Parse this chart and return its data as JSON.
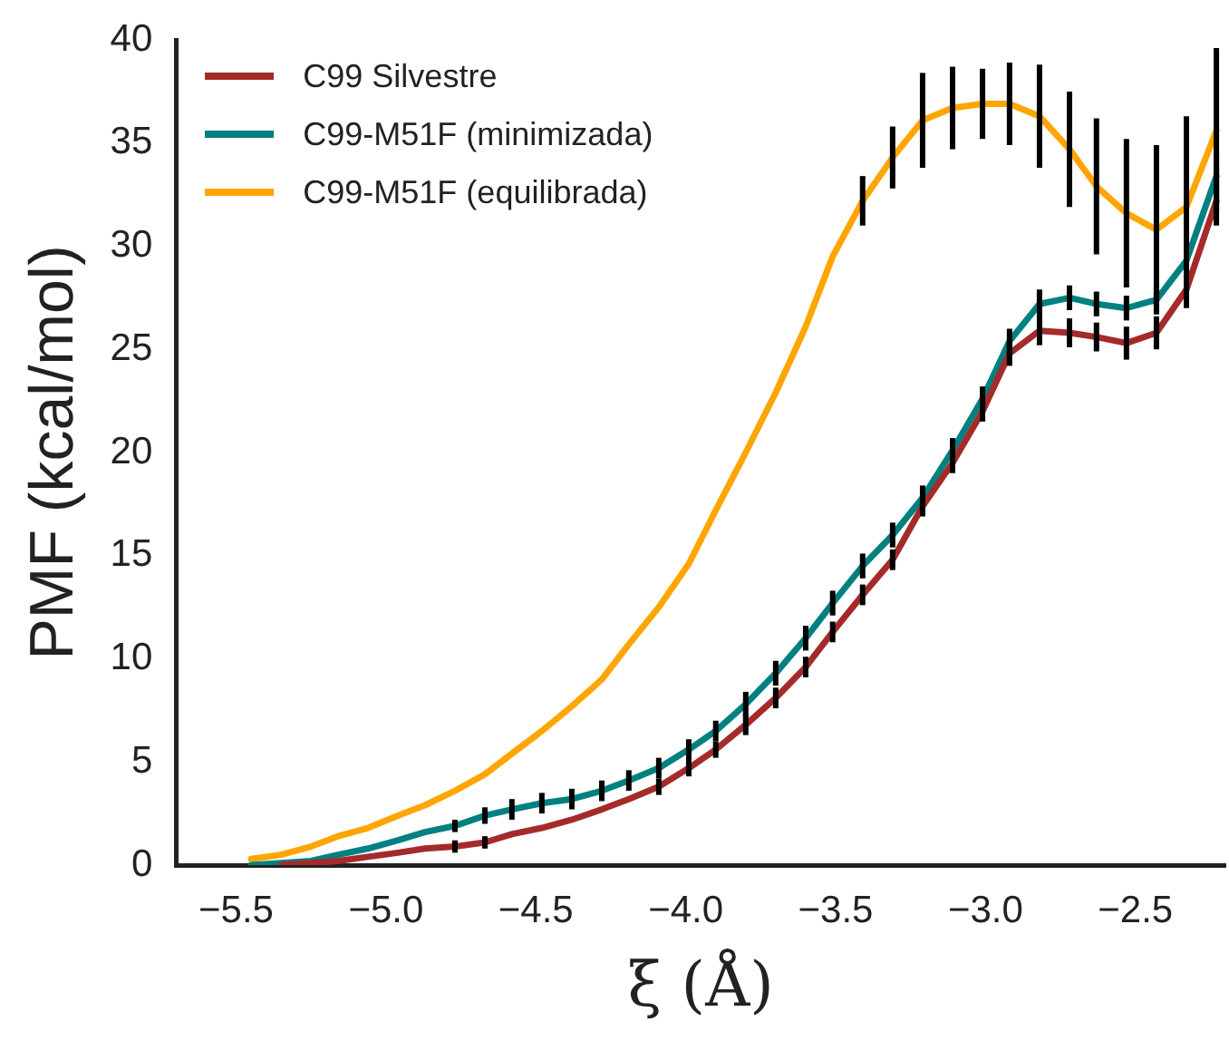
{
  "chart_data": {
    "type": "line",
    "xlabel": "ξ (Å)",
    "ylabel": "PMF (kcal/mol)",
    "xlim": [
      -5.7,
      -2.2
    ],
    "ylim": [
      0,
      40
    ],
    "xticks": [
      {
        "value": -5.5,
        "label": "−5.5"
      },
      {
        "value": -5.0,
        "label": "−5.0"
      },
      {
        "value": -4.5,
        "label": "−4.5"
      },
      {
        "value": -4.0,
        "label": "−4.0"
      },
      {
        "value": -3.5,
        "label": "−3.5"
      },
      {
        "value": -3.0,
        "label": "−3.0"
      },
      {
        "value": -2.5,
        "label": "−2.5"
      }
    ],
    "yticks": [
      0,
      5,
      10,
      15,
      20,
      25,
      30,
      35,
      40
    ],
    "grid": false,
    "legend": "top left",
    "marker": "none",
    "line_style": "solid",
    "x": [
      -5.45,
      -5.35,
      -5.25,
      -5.16,
      -5.06,
      -4.96,
      -4.87,
      -4.77,
      -4.67,
      -4.58,
      -4.48,
      -4.38,
      -4.28,
      -4.19,
      -4.09,
      -3.99,
      -3.9,
      -3.8,
      -3.7,
      -3.6,
      -3.51,
      -3.41,
      -3.31,
      -3.21,
      -3.11,
      -3.01,
      -2.92,
      -2.82,
      -2.72,
      -2.63,
      -2.53,
      -2.43,
      -2.33,
      -2.23
    ],
    "series": [
      {
        "name": "C99 Silvestre",
        "color": "#a52a2a",
        "values": [
          null,
          0,
          0.1,
          0.2,
          0.4,
          0.6,
          0.8,
          0.9,
          1.1,
          1.5,
          1.8,
          2.2,
          2.7,
          3.2,
          3.8,
          4.7,
          5.6,
          6.8,
          8.1,
          9.6,
          11.3,
          13.1,
          14.8,
          17.4,
          19.5,
          22.0,
          24.8,
          25.9,
          25.8,
          25.6,
          25.3,
          25.8,
          27.9,
          32.2
        ],
        "errors": [
          null,
          null,
          null,
          null,
          null,
          null,
          null,
          0.3,
          0.3,
          null,
          null,
          null,
          null,
          null,
          0.4,
          0.4,
          0.4,
          0.5,
          0.5,
          0.5,
          0.5,
          0.5,
          0.5,
          0.5,
          0.5,
          0.5,
          0.6,
          0.7,
          0.7,
          0.7,
          0.8,
          0.8,
          0.9,
          1.2
        ]
      },
      {
        "name": "C99-M51F (minimizada)",
        "color": "#008080",
        "values": [
          0,
          0.1,
          0.2,
          0.5,
          0.8,
          1.2,
          1.6,
          1.9,
          2.4,
          2.7,
          3.0,
          3.2,
          3.6,
          4.1,
          4.7,
          5.6,
          6.5,
          7.8,
          9.3,
          11.0,
          12.7,
          14.5,
          16.0,
          17.8,
          20.1,
          22.6,
          25.4,
          27.2,
          27.5,
          27.2,
          27.0,
          27.4,
          29.3,
          33.4
        ],
        "errors": [
          null,
          null,
          null,
          null,
          null,
          null,
          null,
          0.3,
          0.4,
          0.5,
          0.5,
          0.5,
          0.5,
          0.5,
          0.5,
          0.5,
          0.5,
          0.6,
          0.6,
          0.6,
          0.6,
          0.6,
          0.6,
          0.6,
          0.6,
          0.6,
          0.6,
          0.7,
          0.6,
          0.6,
          0.6,
          0.7,
          0.9,
          1.2
        ]
      },
      {
        "name": "C99-M51F (equilibrada)",
        "color": "#ffa500",
        "values": [
          0.3,
          0.5,
          0.9,
          1.4,
          1.8,
          2.4,
          2.9,
          3.6,
          4.4,
          5.4,
          6.5,
          7.7,
          9.0,
          10.7,
          12.5,
          14.6,
          17.2,
          20.0,
          22.9,
          26.1,
          29.5,
          32.2,
          34.3,
          36.1,
          36.7,
          36.9,
          36.9,
          36.3,
          34.7,
          32.9,
          31.6,
          30.8,
          31.9,
          35.6
        ],
        "errors": [
          null,
          null,
          null,
          null,
          null,
          null,
          null,
          null,
          null,
          null,
          null,
          null,
          null,
          null,
          null,
          null,
          null,
          null,
          null,
          null,
          null,
          1.2,
          1.5,
          2.3,
          2.0,
          1.7,
          2.0,
          2.5,
          2.8,
          3.3,
          3.6,
          4.1,
          4.4,
          4.0
        ]
      }
    ]
  }
}
